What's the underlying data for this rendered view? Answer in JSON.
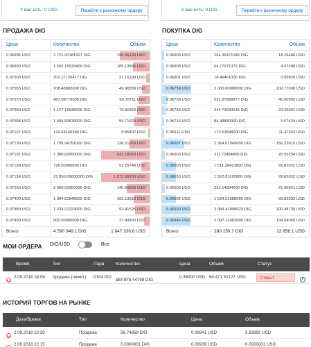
{
  "top_left": {
    "balance_label": "У вас есть: 0 USD",
    "market_link": "Перейти к рыночному ордеру"
  },
  "top_right": {
    "balance_label": "У вас есть: 0 DIG",
    "market_link": "Перейти к рыночному ордеру"
  },
  "sell": {
    "title": "ПРОДАЖА DIG",
    "headers": {
      "price": "Цена",
      "qty": "Количество",
      "vol": "Объем"
    },
    "rows": [
      {
        "price": "0.06996 USD",
        "qty": "2 721.00181927 DIG",
        "vol": "190.36129 USD",
        "fill": 0.62
      },
      {
        "price": "0.06999 USD",
        "qty": "1 502.15533409 DIG",
        "vol": "105.13585 USD",
        "fill": 0.34
      },
      {
        "price": "0.07000 USD",
        "qty": "302.17120417 DIG",
        "vol": "21.15198 USD",
        "fill": 0.07
      },
      {
        "price": "0.07055 USD",
        "qty": "708.48883000 DIG",
        "vol": "49.98389 USD",
        "fill": 0.16
      },
      {
        "price": "0.07070 USD",
        "qty": "987.08779000 DIG",
        "vol": "69.78711 USD",
        "fill": 0.23
      },
      {
        "price": "0.07090 USD",
        "qty": "1 127.19948000 DIG",
        "vol": "79.91843 USD",
        "fill": 0.26
      },
      {
        "price": "0.07098 USD",
        "qty": "1 404.83639000 DIG",
        "vol": "99.71529 USD",
        "fill": 0.32
      },
      {
        "price": "0.07107 USD",
        "qty": "124.58166380 DIG",
        "vol": "8.85402 USD",
        "fill": 0.03
      },
      {
        "price": "0.07139 USD",
        "qty": "1 795.94751000 DIG",
        "vol": "128.21269 USD",
        "fill": 0.42
      },
      {
        "price": "0.07197 USD",
        "qty": "7 380.62650000 DIG",
        "vol": "531.18369 USD",
        "fill": 1.0
      },
      {
        "price": "0.07198 USD",
        "qty": "726.00000000 DIG",
        "vol": "52.25748 USD",
        "fill": 0.17
      },
      {
        "price": "0.07199 USD",
        "qty": "21 850.00000000 DIG",
        "vol": "1 572.98150 USD",
        "fill": 1.0
      },
      {
        "price": "0.07250 USD",
        "qty": "2 000.00000000 DIG",
        "vol": "145.00000 USD",
        "fill": 0.47
      },
      {
        "price": "0.07400 USD",
        "qty": "1 394.52948000 DIG",
        "vol": "103.19518 USD",
        "fill": 0.33
      },
      {
        "price": "0.07489 USD",
        "qty": "1 234.01324000 DIG",
        "vol": "92.41525 USD",
        "fill": 0.3
      },
      {
        "price": "0.07499 USD",
        "qty": "500.00000000 DIG",
        "vol": "37.49500 USD",
        "fill": 0.12
      }
    ],
    "total_label": "Всего:",
    "total_qty": "4 590 949.1 DIG",
    "total_vol": "1 847 336.8 USD"
  },
  "buy": {
    "title": "ПОКУПКА DIG",
    "headers": {
      "price": "Цена",
      "qty": "Количество",
      "vol": "Объем"
    },
    "rows": [
      {
        "price": "0.06909 USD",
        "qty": "264.36471045 DIG",
        "vol": "18.26496 USD",
        "fill": 0.06
      },
      {
        "price": "0.06908 USD",
        "qty": "64.77971372 DIG",
        "vol": "4.47498 USD",
        "fill": 0.02
      },
      {
        "price": "0.06901 USD",
        "qty": "14.46461000 DIG",
        "vol": "0.99820 USD",
        "fill": 0.01
      },
      {
        "price": "0.06759 USD",
        "qty": "3 000.00000000 DIG",
        "vol": "202.77000 USD",
        "fill": 0.95
      },
      {
        "price": "0.06758 USD",
        "qty": "591.97868877 DIG",
        "vol": "40.00592 USD",
        "fill": 0.19
      },
      {
        "price": "0.06756 USD",
        "qty": "344.73090645 DIG",
        "vol": "23.29002 USD",
        "fill": 0.11
      },
      {
        "price": "0.06716 USD",
        "qty": "84.48840000 DIG",
        "vol": "5.67424 USD",
        "fill": 0.03
      },
      {
        "price": "0.06611 USD",
        "qty": "173.53848000 DIG",
        "vol": "11.47263 USD",
        "fill": 0.05
      },
      {
        "price": "0.06607 USD",
        "qty": "2 364.61549000 DIG",
        "vol": "156.23015 USD",
        "fill": 0.73
      },
      {
        "price": "0.06606 USD",
        "qty": "311.72484000 DIG",
        "vol": "20.59254 USD",
        "fill": 0.1
      },
      {
        "price": "0.06605 USD",
        "qty": "1 511.28423000 DIG",
        "vol": "99.82032 USD",
        "fill": 0.47
      },
      {
        "price": "0.06555 USD",
        "qty": "1 522.81195000 DIG",
        "vol": "99.82032 USD",
        "fill": 0.47
      },
      {
        "price": "0.06506 USD",
        "qty": "332.14284000 DIG",
        "vol": "21.60921 USD",
        "fill": 0.1
      },
      {
        "price": "0.06505 USD",
        "qty": "1 534.51688000 DIG",
        "vol": "99.82032 USD",
        "fill": 0.47
      },
      {
        "price": "0.06500 USD",
        "qty": "3 084.41998623 DIG",
        "vol": "200.48730 USD",
        "fill": 0.94
      },
      {
        "price": "0.06446 USD",
        "qty": "3 097.12452000 DIG",
        "vol": "199.64065 USD",
        "fill": 0.94
      }
    ],
    "total_label": "Всего:",
    "total_qty": "280 159.7 DIG",
    "total_vol": "12 856.1 USD"
  },
  "my_orders": {
    "title": "МОИ ОРДЕРА",
    "pair_toggle": "DIG/USD",
    "all_label": "Все",
    "headers": {
      "time": "Время",
      "type": "Тип",
      "pair": "Пара",
      "qty": "Количество",
      "price": "Цена",
      "vol": "Объем",
      "status": "Статус"
    },
    "rows": [
      {
        "time": "2.09.2018 18:08",
        "type": "продажа (лимит)",
        "pair": "DIG/USD",
        "qty": "167 976.44798 DIG",
        "qty_extra": "(0 DIG)",
        "price": "0.36000 USD",
        "vol": "60 471.52127 USD",
        "status": "Открыт"
      }
    ]
  },
  "history": {
    "title": "ИСТОРИЯ ТОРГОВ НА РЫНКЕ",
    "headers": {
      "datetime": "Дата/Время",
      "type": "Тип",
      "qty": "Количество",
      "price": "Цена",
      "vol": "Объем"
    },
    "rows": [
      {
        "datetime": "2.09.2018 22:30",
        "type": "Продажа",
        "qty": "56.74858 DIG",
        "price": "0.06941 USD",
        "vol": "3.93892 USD"
      },
      {
        "datetime": "2.09.2018 22:15",
        "type": "Продажа",
        "qty": "0.0000001 DIG",
        "price": "0.06939 USD",
        "vol": "0.0000001 USD"
      }
    ]
  },
  "colors": {
    "sell_bar": "#eab0b4",
    "buy_bar": "#bfe0f5",
    "link": "#1a66b0",
    "table_header": "#4a4a4a",
    "status_bg": "#f7d6d6"
  }
}
